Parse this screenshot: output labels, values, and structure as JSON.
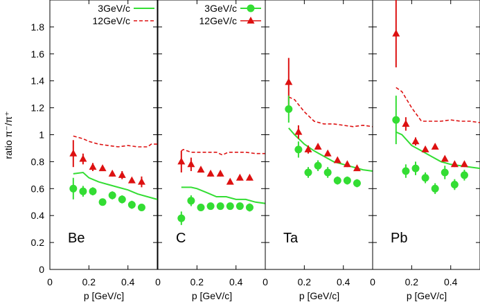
{
  "chart_data": {
    "type": "scatter",
    "ylabel": "ratio π⁻/π⁺",
    "ylim": [
      0,
      2
    ],
    "yticks": [
      "0",
      "0.2",
      "0.4",
      "0.6",
      "0.8",
      "1",
      "1.2",
      "1.4",
      "1.6",
      "1.8"
    ],
    "ytick_values": [
      0,
      0.2,
      0.4,
      0.6,
      0.8,
      1.0,
      1.2,
      1.4,
      1.6,
      1.8
    ],
    "xlabel": "p [GeV/c]",
    "xlim": [
      0,
      0.55
    ],
    "xticks": [
      "0",
      "0.2",
      "0.4"
    ],
    "xtick_values": [
      0,
      0.2,
      0.4
    ],
    "colors": {
      "green": "#33dd33",
      "red": "#dd1111"
    },
    "legends": [
      {
        "panel": 0,
        "entries": [
          {
            "label": "3GeV/c",
            "style": "green-solid-line"
          },
          {
            "label": "12GeV/c",
            "style": "red-dashed-line"
          }
        ]
      },
      {
        "panel": 1,
        "entries": [
          {
            "label": "3GeV/c",
            "style": "green-circle-line"
          },
          {
            "label": "12GeV/c",
            "style": "red-triangle-line"
          }
        ]
      }
    ],
    "panels": [
      {
        "label": "Be",
        "green_line": {
          "x": [
            0.12,
            0.17,
            0.2,
            0.25,
            0.3,
            0.35,
            0.4,
            0.45,
            0.5,
            0.55
          ],
          "y": [
            0.71,
            0.72,
            0.68,
            0.65,
            0.63,
            0.61,
            0.59,
            0.56,
            0.54,
            0.52
          ]
        },
        "red_line": {
          "x": [
            0.12,
            0.17,
            0.2,
            0.25,
            0.3,
            0.35,
            0.4,
            0.45,
            0.5,
            0.52,
            0.55
          ],
          "y": [
            0.99,
            0.97,
            0.95,
            0.93,
            0.92,
            0.91,
            0.92,
            0.91,
            0.91,
            0.93,
            0.93
          ]
        },
        "green_points": {
          "x": [
            0.12,
            0.17,
            0.22,
            0.27,
            0.32,
            0.37,
            0.42,
            0.47
          ],
          "y": [
            0.6,
            0.58,
            0.58,
            0.5,
            0.55,
            0.52,
            0.48,
            0.46
          ],
          "err": [
            0.08,
            0.04,
            0.03,
            0.02,
            0.03,
            0.03,
            0.03,
            0.02
          ]
        },
        "red_points": {
          "x": [
            0.12,
            0.17,
            0.22,
            0.27,
            0.32,
            0.37,
            0.42,
            0.47
          ],
          "y": [
            0.86,
            0.82,
            0.76,
            0.75,
            0.71,
            0.7,
            0.66,
            0.65
          ],
          "err": [
            0.1,
            0.04,
            0.03,
            0.02,
            0.02,
            0.03,
            0.02,
            0.04
          ]
        }
      },
      {
        "label": "C",
        "green_line": {
          "x": [
            0.12,
            0.17,
            0.2,
            0.25,
            0.3,
            0.35,
            0.4,
            0.45,
            0.5,
            0.55
          ],
          "y": [
            0.61,
            0.61,
            0.6,
            0.57,
            0.54,
            0.54,
            0.52,
            0.52,
            0.5,
            0.49
          ]
        },
        "red_line": {
          "x": [
            0.12,
            0.13,
            0.17,
            0.2,
            0.25,
            0.3,
            0.33,
            0.36,
            0.4,
            0.45,
            0.5,
            0.55
          ],
          "y": [
            0.88,
            0.89,
            0.87,
            0.87,
            0.87,
            0.87,
            0.85,
            0.87,
            0.87,
            0.87,
            0.86,
            0.86
          ]
        },
        "green_points": {
          "x": [
            0.12,
            0.17,
            0.22,
            0.27,
            0.32,
            0.37,
            0.42,
            0.47
          ],
          "y": [
            0.38,
            0.51,
            0.46,
            0.47,
            0.47,
            0.47,
            0.47,
            0.46
          ],
          "err": [
            0.05,
            0.04,
            0.02,
            0.02,
            0.02,
            0.02,
            0.02,
            0.03
          ]
        },
        "red_points": {
          "x": [
            0.12,
            0.17,
            0.22,
            0.27,
            0.32,
            0.37,
            0.42,
            0.47
          ],
          "y": [
            0.8,
            0.78,
            0.74,
            0.71,
            0.71,
            0.65,
            0.68,
            0.68
          ],
          "err": [
            0.08,
            0.05,
            0.02,
            0.02,
            0.02,
            0.02,
            0.02,
            0.02
          ]
        }
      },
      {
        "label": "Ta",
        "green_line": {
          "x": [
            0.12,
            0.15,
            0.2,
            0.25,
            0.3,
            0.35,
            0.4,
            0.45,
            0.5,
            0.55
          ],
          "y": [
            1.05,
            1.0,
            0.93,
            0.88,
            0.84,
            0.8,
            0.78,
            0.76,
            0.74,
            0.73
          ]
        },
        "red_line": {
          "x": [
            0.12,
            0.15,
            0.2,
            0.25,
            0.3,
            0.35,
            0.4,
            0.45,
            0.5,
            0.55
          ],
          "y": [
            1.28,
            1.26,
            1.17,
            1.1,
            1.08,
            1.08,
            1.07,
            1.06,
            1.07,
            1.06
          ]
        },
        "green_points": {
          "x": [
            0.12,
            0.17,
            0.22,
            0.27,
            0.32,
            0.37,
            0.42,
            0.47
          ],
          "y": [
            1.19,
            0.89,
            0.72,
            0.77,
            0.72,
            0.66,
            0.66,
            0.64
          ],
          "err": [
            0.1,
            0.06,
            0.04,
            0.04,
            0.04,
            0.03,
            0.03,
            0.03
          ]
        },
        "red_points": {
          "x": [
            0.12,
            0.17,
            0.22,
            0.27,
            0.32,
            0.37,
            0.42,
            0.47
          ],
          "y": [
            1.39,
            1.02,
            0.89,
            0.91,
            0.86,
            0.81,
            0.78,
            0.75
          ],
          "err": [
            0.18,
            0.05,
            0.03,
            0.02,
            0.02,
            0.02,
            0.02,
            0.02
          ]
        }
      },
      {
        "label": "Pb",
        "green_line": {
          "x": [
            0.12,
            0.15,
            0.2,
            0.25,
            0.3,
            0.35,
            0.4,
            0.45,
            0.5,
            0.55
          ],
          "y": [
            1.02,
            1.0,
            0.92,
            0.88,
            0.84,
            0.8,
            0.78,
            0.77,
            0.76,
            0.75
          ]
        },
        "red_line": {
          "x": [
            0.12,
            0.15,
            0.2,
            0.25,
            0.3,
            0.35,
            0.4,
            0.45,
            0.5,
            0.55
          ],
          "y": [
            1.35,
            1.32,
            1.2,
            1.1,
            1.1,
            1.1,
            1.11,
            1.1,
            1.1,
            1.09
          ]
        },
        "green_points": {
          "x": [
            0.12,
            0.17,
            0.22,
            0.27,
            0.32,
            0.37,
            0.42,
            0.47
          ],
          "y": [
            1.11,
            0.73,
            0.75,
            0.68,
            0.6,
            0.72,
            0.63,
            0.7
          ],
          "err": [
            0.18,
            0.05,
            0.05,
            0.04,
            0.04,
            0.05,
            0.04,
            0.04
          ]
        },
        "red_points": {
          "x": [
            0.12,
            0.17,
            0.22,
            0.27,
            0.32,
            0.37,
            0.42,
            0.47
          ],
          "y": [
            1.75,
            1.08,
            0.95,
            0.89,
            0.91,
            0.82,
            0.78,
            0.78
          ],
          "err": [
            0.25,
            0.05,
            0.03,
            0.02,
            0.02,
            0.02,
            0.02,
            0.02
          ]
        }
      }
    ]
  }
}
